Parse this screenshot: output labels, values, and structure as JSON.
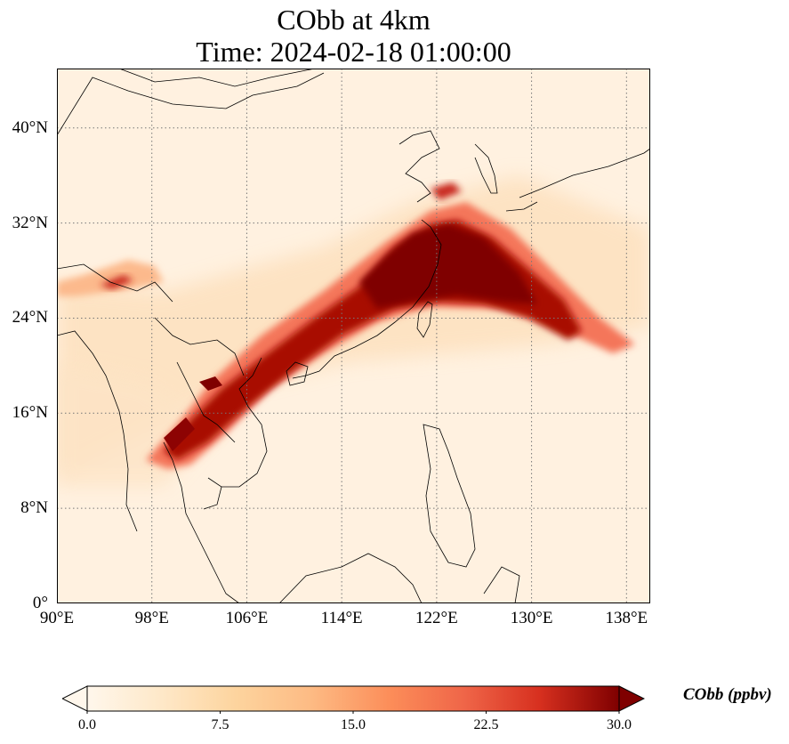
{
  "title": {
    "line1": "CObb at 4km",
    "line2": "Time: 2024-02-18 01:00:00"
  },
  "map": {
    "extent": {
      "lon_min": 90,
      "lon_max": 140,
      "lat_min": 0,
      "lat_max": 45
    },
    "lat_ticks": [
      {
        "value": 0,
        "label": "0°"
      },
      {
        "value": 8,
        "label": "8°N"
      },
      {
        "value": 16,
        "label": "16°N"
      },
      {
        "value": 24,
        "label": "24°N"
      },
      {
        "value": 32,
        "label": "32°N"
      },
      {
        "value": 40,
        "label": "40°N"
      }
    ],
    "lon_ticks": [
      {
        "value": 90,
        "label": "90°E"
      },
      {
        "value": 98,
        "label": "98°E"
      },
      {
        "value": 106,
        "label": "106°E"
      },
      {
        "value": 114,
        "label": "114°E"
      },
      {
        "value": 122,
        "label": "122°E"
      },
      {
        "value": 130,
        "label": "130°E"
      },
      {
        "value": 138,
        "label": "138°E"
      }
    ],
    "gridlines": true,
    "colormap": "OrRd",
    "colors": {
      "low": "#fff7ec",
      "mid": "#fdbb84",
      "high": "#7f0000",
      "coast": "#000000",
      "grid": "#777777"
    }
  },
  "colorbar": {
    "label": "CObb (ppbv)",
    "min": 0,
    "max": 30,
    "extend": "both",
    "ticks": [
      "0.0",
      "7.5",
      "15.0",
      "22.5",
      "30.0"
    ]
  }
}
